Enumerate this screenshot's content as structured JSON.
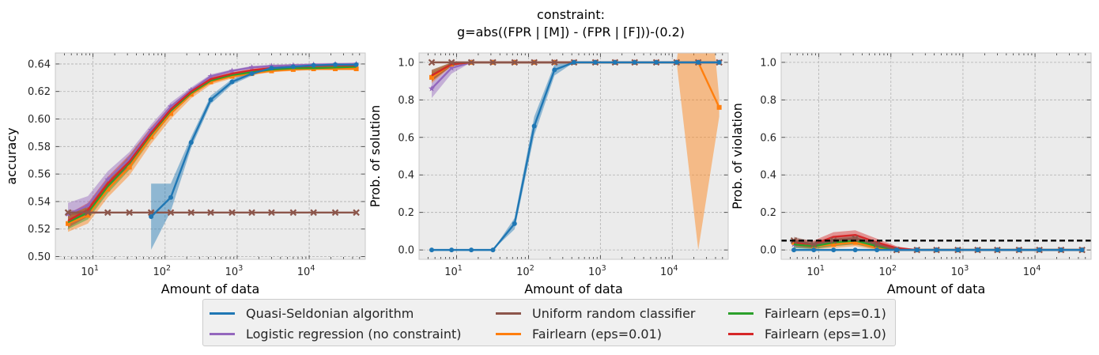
{
  "suptitle_lines": [
    "constraint:",
    "g=abs((FPR | [M]) - (FPR | [F]))-(0.2)"
  ],
  "legend": {
    "items": [
      {
        "label": "Quasi-Seldonian algorithm",
        "color": "#1f77b4"
      },
      {
        "label": "Uniform random classifier",
        "color": "#8c564b"
      },
      {
        "label": "Fairlearn (eps=0.1)",
        "color": "#2ca02c"
      },
      {
        "label": "Logistic regression (no constraint)",
        "color": "#9467bd"
      },
      {
        "label": "Fairlearn (eps=0.01)",
        "color": "#ff7f0e"
      },
      {
        "label": "Fairlearn (eps=1.0)",
        "color": "#d62728"
      }
    ]
  },
  "chart_data": [
    {
      "type": "line",
      "xlabel": "Amount of data",
      "ylabel": "accuracy",
      "xscale": "log",
      "xlim": [
        3,
        60000
      ],
      "ylim": [
        0.498,
        0.648
      ],
      "yticks": [
        0.5,
        0.52,
        0.54,
        0.56,
        0.58,
        0.6,
        0.62,
        0.64
      ],
      "ytick_labels": [
        "0.50",
        "0.52",
        "0.54",
        "0.56",
        "0.58",
        "0.60",
        "0.62",
        "0.64"
      ],
      "xtick_labels": [
        "10^1",
        "10^2",
        "10^3",
        "10^4"
      ],
      "grid": true,
      "series": [
        {
          "name": "Logistic regression (no constraint)",
          "color": "#9467bd",
          "marker": "star",
          "x": [
            4.5,
            8.5,
            16,
            32,
            64,
            120,
            230,
            430,
            850,
            1600,
            3000,
            6000,
            11500,
            23000,
            45000
          ],
          "y": [
            0.531,
            0.537,
            0.556,
            0.571,
            0.592,
            0.609,
            0.621,
            0.631,
            0.635,
            0.6375,
            0.6385,
            0.639,
            0.6395,
            0.6398,
            0.64
          ],
          "band": [
            0.008,
            0.007,
            0.006,
            0.005,
            0.004,
            0.003,
            0.002,
            0.0015,
            0.001,
            0.001,
            0.001,
            0.001,
            0.001,
            0.001,
            0.001
          ]
        },
        {
          "name": "Fairlearn (eps=0.01)",
          "color": "#ff7f0e",
          "marker": "square",
          "x": [
            4.5,
            8.5,
            16,
            32,
            64,
            120,
            230,
            430,
            850,
            1600,
            3000,
            6000,
            11500,
            23000,
            45000
          ],
          "y": [
            0.524,
            0.53,
            0.549,
            0.565,
            0.587,
            0.604,
            0.618,
            0.627,
            0.631,
            0.633,
            0.635,
            0.636,
            0.6365,
            0.6365,
            0.6365
          ],
          "band": [
            0.006,
            0.006,
            0.006,
            0.006,
            0.005,
            0.004,
            0.003,
            0.002,
            0.0015,
            0.001,
            0.001,
            0.001,
            0.001,
            0.001,
            0.001
          ]
        },
        {
          "name": "Fairlearn (eps=0.1)",
          "color": "#2ca02c",
          "marker": "none",
          "x": [
            4.5,
            8.5,
            16,
            32,
            64,
            120,
            230,
            430,
            850,
            1600,
            3000,
            6000,
            11500,
            23000,
            45000
          ],
          "y": [
            0.525,
            0.532,
            0.551,
            0.568,
            0.589,
            0.606,
            0.619,
            0.628,
            0.632,
            0.634,
            0.636,
            0.637,
            0.637,
            0.6375,
            0.638
          ],
          "band": [
            0.005,
            0.005,
            0.005,
            0.005,
            0.004,
            0.003,
            0.002,
            0.0015,
            0.001,
            0.001,
            0.001,
            0.001,
            0.001,
            0.001,
            0.001
          ]
        },
        {
          "name": "Fairlearn (eps=1.0)",
          "color": "#d62728",
          "marker": "none",
          "x": [
            4.5,
            8.5,
            16,
            32,
            64,
            120,
            230,
            430,
            850,
            1600,
            3000,
            6000,
            11500,
            23000,
            45000
          ],
          "y": [
            0.526,
            0.534,
            0.553,
            0.569,
            0.59,
            0.607,
            0.62,
            0.629,
            0.633,
            0.6355,
            0.637,
            0.638,
            0.6385,
            0.639,
            0.639
          ],
          "band": [
            0.005,
            0.005,
            0.005,
            0.005,
            0.004,
            0.003,
            0.002,
            0.0015,
            0.001,
            0.001,
            0.001,
            0.001,
            0.001,
            0.001,
            0.001
          ]
        },
        {
          "name": "Uniform random classifier",
          "color": "#8c564b",
          "marker": "x",
          "x": [
            4.5,
            8.5,
            16,
            32,
            64,
            120,
            230,
            430,
            850,
            1600,
            3000,
            6000,
            11500,
            23000,
            45000
          ],
          "y": [
            0.532,
            0.532,
            0.532,
            0.532,
            0.532,
            0.532,
            0.532,
            0.532,
            0.532,
            0.532,
            0.532,
            0.532,
            0.532,
            0.532,
            0.532
          ],
          "band": [
            0.002,
            0.001,
            0.0005,
            0,
            0,
            0,
            0,
            0,
            0,
            0,
            0,
            0,
            0,
            0,
            0
          ]
        },
        {
          "name": "Quasi-Seldonian algorithm",
          "color": "#1f77b4",
          "marker": "circle",
          "x": [
            64,
            120,
            230,
            430,
            850,
            1600,
            3000,
            6000,
            11500,
            23000,
            45000
          ],
          "y": [
            0.529,
            0.543,
            0.583,
            0.614,
            0.627,
            0.633,
            0.637,
            0.638,
            0.639,
            0.6395,
            0.6395
          ],
          "band": [
            0.024,
            0.01,
            0.004,
            0.003,
            0.002,
            0.0015,
            0.001,
            0.001,
            0.001,
            0.001,
            0.001
          ]
        }
      ]
    },
    {
      "type": "line",
      "xlabel": "Amount of data",
      "ylabel": "Prob. of solution",
      "xscale": "log",
      "xlim": [
        3,
        60000
      ],
      "ylim": [
        -0.05,
        1.05
      ],
      "yticks": [
        0,
        0.2,
        0.4,
        0.6,
        0.8,
        1.0
      ],
      "ytick_labels": [
        "0.0",
        "0.2",
        "0.4",
        "0.6",
        "0.8",
        "1.0"
      ],
      "xtick_labels": [
        "10^1",
        "10^2",
        "10^3",
        "10^4"
      ],
      "grid": true,
      "series": [
        {
          "name": "Logistic regression (no constraint)",
          "color": "#9467bd",
          "marker": "star",
          "x": [
            4.5,
            8.5,
            16,
            32,
            64,
            120,
            230,
            430,
            850,
            1600,
            3000,
            6000,
            11500,
            23000,
            45000
          ],
          "y": [
            0.86,
            0.97,
            1,
            1,
            1,
            1,
            1,
            1,
            1,
            1,
            1,
            1,
            1,
            1,
            1
          ],
          "band": [
            0.05,
            0.03,
            0,
            0,
            0,
            0,
            0,
            0,
            0,
            0,
            0,
            0,
            0,
            0,
            0
          ]
        },
        {
          "name": "Fairlearn (eps=0.01)",
          "color": "#ff7f0e",
          "marker": "square",
          "x": [
            4.5,
            8.5,
            16,
            32,
            64,
            120,
            230,
            430,
            850,
            1600,
            3000,
            6000,
            11500,
            23000,
            45000
          ],
          "y": [
            0.92,
            0.99,
            1,
            1,
            1,
            1,
            1,
            1,
            1,
            1,
            1,
            1,
            1,
            1,
            0.76
          ],
          "band": [
            0.03,
            0.01,
            0,
            0,
            0,
            0,
            0,
            0,
            0,
            0,
            0,
            0,
            0,
            1,
            0.05
          ]
        },
        {
          "name": "Fairlearn (eps=0.1)",
          "color": "#2ca02c",
          "marker": "none",
          "x": [
            4.5,
            8.5,
            16,
            32,
            64,
            120,
            230,
            430,
            850,
            1600,
            3000,
            6000,
            11500,
            23000,
            45000
          ],
          "y": [
            0.93,
            0.99,
            1,
            1,
            1,
            1,
            1,
            1,
            1,
            1,
            1,
            1,
            1,
            1,
            1
          ],
          "band": [
            0.03,
            0.01,
            0,
            0,
            0,
            0,
            0,
            0,
            0,
            0,
            0,
            0,
            0,
            0,
            0
          ]
        },
        {
          "name": "Fairlearn (eps=1.0)",
          "color": "#d62728",
          "marker": "none",
          "x": [
            4.5,
            8.5,
            16,
            32,
            64,
            120,
            230,
            430,
            850,
            1600,
            3000,
            6000,
            11500,
            23000,
            45000
          ],
          "y": [
            0.93,
            0.99,
            1,
            1,
            1,
            1,
            1,
            1,
            1,
            1,
            1,
            1,
            1,
            1,
            1
          ],
          "band": [
            0.03,
            0.01,
            0,
            0,
            0,
            0,
            0,
            0,
            0,
            0,
            0,
            0,
            0,
            0,
            0
          ]
        },
        {
          "name": "Uniform random classifier",
          "color": "#8c564b",
          "marker": "x",
          "x": [
            4.5,
            8.5,
            16,
            32,
            64,
            120,
            230,
            430,
            850,
            1600,
            3000,
            6000,
            11500,
            23000,
            45000
          ],
          "y": [
            1,
            1,
            1,
            1,
            1,
            1,
            1,
            1,
            1,
            1,
            1,
            1,
            1,
            1,
            1
          ],
          "band": [
            0,
            0,
            0,
            0,
            0,
            0,
            0,
            0,
            0,
            0,
            0,
            0,
            0,
            0,
            0
          ]
        },
        {
          "name": "Quasi-Seldonian algorithm",
          "color": "#1f77b4",
          "marker": "circle",
          "x": [
            4.5,
            8.5,
            16,
            32,
            64,
            120,
            230,
            430,
            850,
            1600,
            3000,
            6000,
            11500,
            23000,
            45000
          ],
          "y": [
            0,
            0,
            0,
            0,
            0.14,
            0.66,
            0.96,
            1,
            1,
            1,
            1,
            1,
            1,
            1,
            1
          ],
          "band": [
            0,
            0,
            0,
            0,
            0.03,
            0.05,
            0.03,
            0,
            0,
            0,
            0,
            0,
            0,
            0,
            0
          ]
        }
      ]
    },
    {
      "type": "line",
      "xlabel": "Amount of data",
      "ylabel": "Prob. of violation",
      "xscale": "log",
      "xlim": [
        3,
        60000
      ],
      "ylim": [
        -0.05,
        1.05
      ],
      "yticks": [
        0,
        0.2,
        0.4,
        0.6,
        0.8,
        1.0
      ],
      "ytick_labels": [
        "0.0",
        "0.2",
        "0.4",
        "0.6",
        "0.8",
        "1.0"
      ],
      "xtick_labels": [
        "10^1",
        "10^2",
        "10^3",
        "10^4"
      ],
      "grid": true,
      "hline": {
        "y": 0.05,
        "style": "dashed",
        "color": "#000000"
      },
      "series": [
        {
          "name": "Logistic regression (no constraint)",
          "color": "#9467bd",
          "marker": "star",
          "x": [
            4.5,
            8.5,
            16,
            32,
            64,
            120,
            230,
            430,
            850,
            1600,
            3000,
            6000,
            11500,
            23000,
            45000
          ],
          "y": [
            0.03,
            0.02,
            0.04,
            0.05,
            0.02,
            0,
            0,
            0,
            0,
            0,
            0,
            0,
            0,
            0,
            0
          ],
          "band": [
            0.02,
            0.015,
            0.02,
            0.02,
            0.015,
            0,
            0,
            0,
            0,
            0,
            0,
            0,
            0,
            0,
            0
          ]
        },
        {
          "name": "Fairlearn (eps=0.01)",
          "color": "#ff7f0e",
          "marker": "square",
          "x": [
            4.5,
            8.5,
            16,
            32,
            64,
            120,
            230,
            430,
            850,
            1600,
            3000,
            6000,
            11500,
            23000,
            45000
          ],
          "y": [
            0.04,
            0.02,
            0.03,
            0.04,
            0.01,
            0,
            0,
            0,
            0,
            0,
            0,
            0,
            0,
            0,
            0
          ],
          "band": [
            0.02,
            0.015,
            0.02,
            0.02,
            0.01,
            0,
            0,
            0,
            0,
            0,
            0,
            0,
            0,
            0,
            0
          ]
        },
        {
          "name": "Fairlearn (eps=0.1)",
          "color": "#2ca02c",
          "marker": "none",
          "x": [
            4.5,
            8.5,
            16,
            32,
            64,
            120,
            230,
            430,
            850,
            1600,
            3000,
            6000,
            11500,
            23000,
            45000
          ],
          "y": [
            0.03,
            0.02,
            0.04,
            0.05,
            0.02,
            0,
            0,
            0,
            0,
            0,
            0,
            0,
            0,
            0,
            0
          ],
          "band": [
            0.02,
            0.015,
            0.02,
            0.02,
            0.015,
            0,
            0,
            0,
            0,
            0,
            0,
            0,
            0,
            0,
            0
          ]
        },
        {
          "name": "Fairlearn (eps=1.0)",
          "color": "#d62728",
          "marker": "none",
          "x": [
            4.5,
            8.5,
            16,
            32,
            64,
            120,
            230,
            430,
            850,
            1600,
            3000,
            6000,
            11500,
            23000,
            45000
          ],
          "y": [
            0.04,
            0.03,
            0.07,
            0.08,
            0.04,
            0.01,
            0,
            0,
            0,
            0,
            0,
            0,
            0,
            0,
            0
          ],
          "band": [
            0.02,
            0.02,
            0.025,
            0.025,
            0.02,
            0.01,
            0,
            0,
            0,
            0,
            0,
            0,
            0,
            0,
            0
          ]
        },
        {
          "name": "Uniform random classifier",
          "color": "#8c564b",
          "marker": "x",
          "x": [
            4.5,
            8.5,
            16,
            32,
            64,
            120,
            230,
            430,
            850,
            1600,
            3000,
            6000,
            11500,
            23000,
            45000
          ],
          "y": [
            0.05,
            0.03,
            0.05,
            0.06,
            0.03,
            0,
            0,
            0,
            0,
            0,
            0,
            0,
            0,
            0,
            0
          ],
          "band": [
            0.02,
            0.015,
            0.02,
            0.02,
            0.015,
            0,
            0,
            0,
            0,
            0,
            0,
            0,
            0,
            0,
            0
          ]
        },
        {
          "name": "Quasi-Seldonian algorithm",
          "color": "#1f77b4",
          "marker": "circle",
          "x": [
            4.5,
            8.5,
            16,
            32,
            64,
            120,
            230,
            430,
            850,
            1600,
            3000,
            6000,
            11500,
            23000,
            45000
          ],
          "y": [
            0,
            0,
            0,
            0,
            0,
            0,
            0,
            0,
            0,
            0,
            0,
            0,
            0,
            0,
            0
          ],
          "band": [
            0,
            0,
            0,
            0,
            0,
            0,
            0,
            0,
            0,
            0,
            0,
            0,
            0,
            0,
            0
          ]
        }
      ]
    }
  ]
}
